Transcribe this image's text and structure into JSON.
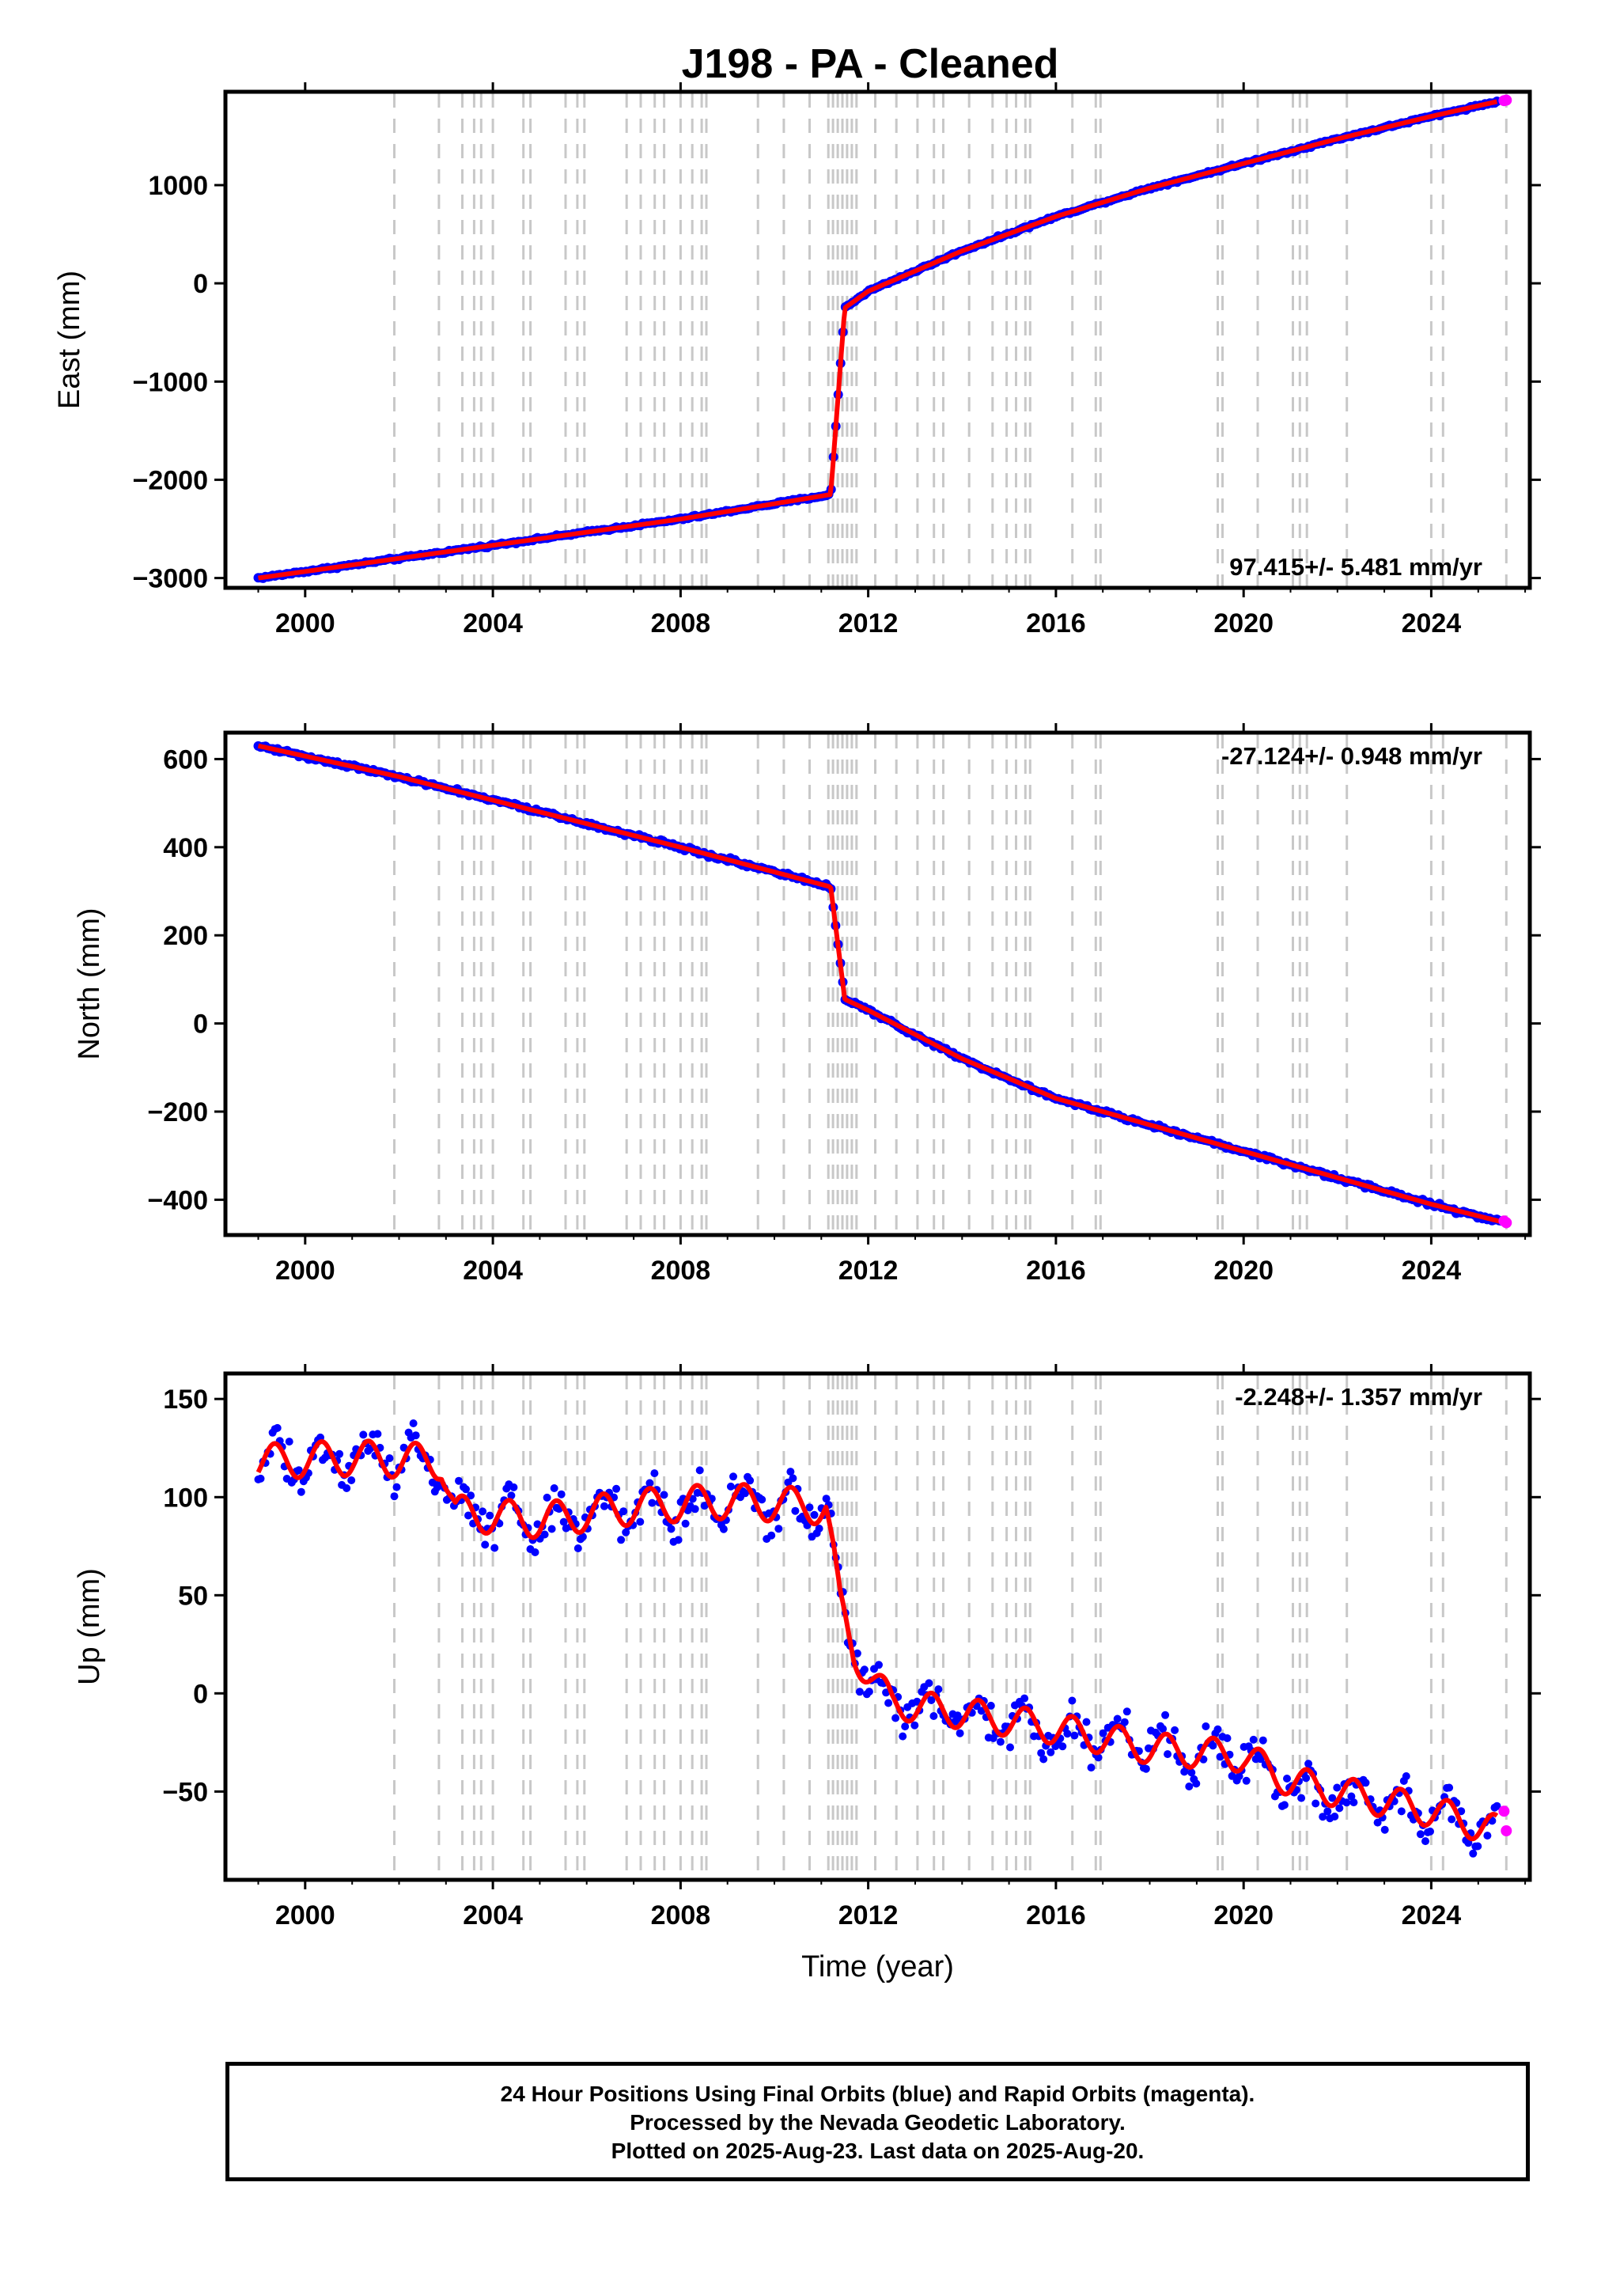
{
  "title": "J198  - PA - Cleaned",
  "footer": {
    "line1": "24 Hour Positions Using Final Orbits (blue) and Rapid Orbits (magenta).",
    "line2": "Processed by the Nevada Geodetic Laboratory.",
    "line3": "Plotted on 2025-Aug-23. Last data on 2025-Aug-20."
  },
  "colors": {
    "final_orbits": "#0000ff",
    "rapid_orbits": "#ff00ff",
    "model": "#ff0000",
    "steps": "#c8c8c8"
  },
  "chart_data": [
    {
      "type": "scatter",
      "title": "J198  - PA - Cleaned",
      "xlabel": "",
      "ylabel": "East (mm)",
      "xlim": [
        1998.3,
        2026.1
      ],
      "ylim": [
        -3100,
        1950
      ],
      "xticks": [
        2000,
        2004,
        2008,
        2012,
        2016,
        2020,
        2024
      ],
      "yticks": [
        -3000,
        -2000,
        -1000,
        0,
        1000
      ],
      "rate_label": "97.415+/- 5.481 mm/yr",
      "rate_position": "bottom-right",
      "series": [
        {
          "name": "Final Orbits",
          "color": "#0000ff",
          "x": [
            1999.0,
            2002.0,
            2005.0,
            2008.0,
            2011.2,
            2011.5,
            2012.0,
            2014.0,
            2016.0,
            2018.0,
            2020.0,
            2022.0,
            2024.0,
            2025.4
          ],
          "y": [
            -3000,
            -2800,
            -2600,
            -2400,
            -2150,
            -250,
            -80,
            330,
            680,
            970,
            1220,
            1470,
            1700,
            1850
          ]
        },
        {
          "name": "Rapid Orbits",
          "color": "#ff00ff",
          "x": [
            2025.55,
            2025.6
          ],
          "y": [
            1860,
            1865
          ]
        }
      ]
    },
    {
      "type": "scatter",
      "xlabel": "",
      "ylabel": "North (mm)",
      "xlim": [
        1998.3,
        2026.1
      ],
      "ylim": [
        -480,
        660
      ],
      "xticks": [
        2000,
        2004,
        2008,
        2012,
        2016,
        2020,
        2024
      ],
      "yticks": [
        -400,
        -200,
        0,
        200,
        400,
        600
      ],
      "rate_label": "-27.124+/- 0.948 mm/yr",
      "rate_position": "top-right",
      "series": [
        {
          "name": "Final Orbits",
          "color": "#0000ff",
          "x": [
            1999.0,
            2002.0,
            2005.0,
            2008.0,
            2011.2,
            2011.5,
            2012.0,
            2014.0,
            2016.0,
            2018.0,
            2020.0,
            2022.0,
            2024.0,
            2025.5
          ],
          "y": [
            630,
            560,
            480,
            400,
            310,
            55,
            30,
            -80,
            -170,
            -230,
            -290,
            -350,
            -410,
            -450
          ]
        },
        {
          "name": "Rapid Orbits",
          "color": "#ff00ff",
          "x": [
            2025.55,
            2025.6
          ],
          "y": [
            -448,
            -452
          ]
        }
      ]
    },
    {
      "type": "scatter",
      "xlabel": "Time (year)",
      "ylabel": "Up (mm)",
      "xlim": [
        1998.3,
        2026.1
      ],
      "ylim": [
        -95,
        163
      ],
      "xticks": [
        2000,
        2004,
        2008,
        2012,
        2016,
        2020,
        2024
      ],
      "yticks": [
        -50,
        0,
        50,
        100,
        150
      ],
      "rate_label": "-2.248+/- 1.357 mm/yr",
      "rate_position": "top-right",
      "series": [
        {
          "name": "Final Orbits",
          "color": "#0000ff",
          "x": [
            1999.0,
            2001.0,
            2002.9,
            2003.2,
            2005.0,
            2007.0,
            2009.0,
            2011.1,
            2011.4,
            2011.7,
            2012.5,
            2014.0,
            2016.0,
            2018.0,
            2020.0,
            2021.0,
            2022.0,
            2023.0,
            2024.0,
            2025.4
          ],
          "y": [
            118,
            120,
            118,
            92,
            88,
            95,
            98,
            95,
            45,
            20,
            -5,
            -10,
            -18,
            -28,
            -32,
            -45,
            -50,
            -55,
            -60,
            -70
          ]
        },
        {
          "name": "Rapid Orbits",
          "color": "#ff00ff",
          "x": [
            2025.55,
            2025.6
          ],
          "y": [
            -60,
            -70
          ]
        }
      ]
    }
  ],
  "step_lines": [
    2001.9,
    2002.85,
    2003.35,
    2003.6,
    2003.75,
    2004.0,
    2004.65,
    2004.8,
    2005.55,
    2005.8,
    2005.95,
    2006.85,
    2007.15,
    2007.45,
    2007.65,
    2008.0,
    2008.25,
    2008.45,
    2008.55,
    2009.65,
    2010.2,
    2010.75,
    2011.15,
    2011.25,
    2011.35,
    2011.45,
    2011.55,
    2011.65,
    2011.75,
    2012.15,
    2012.6,
    2013.05,
    2013.4,
    2013.6,
    2014.15,
    2014.65,
    2014.95,
    2015.15,
    2015.35,
    2015.45,
    2016.35,
    2016.85,
    2016.95,
    2019.45,
    2019.55,
    2020.3,
    2021.05,
    2021.2,
    2021.35,
    2022.2,
    2024.0,
    2024.25,
    2025.6
  ]
}
